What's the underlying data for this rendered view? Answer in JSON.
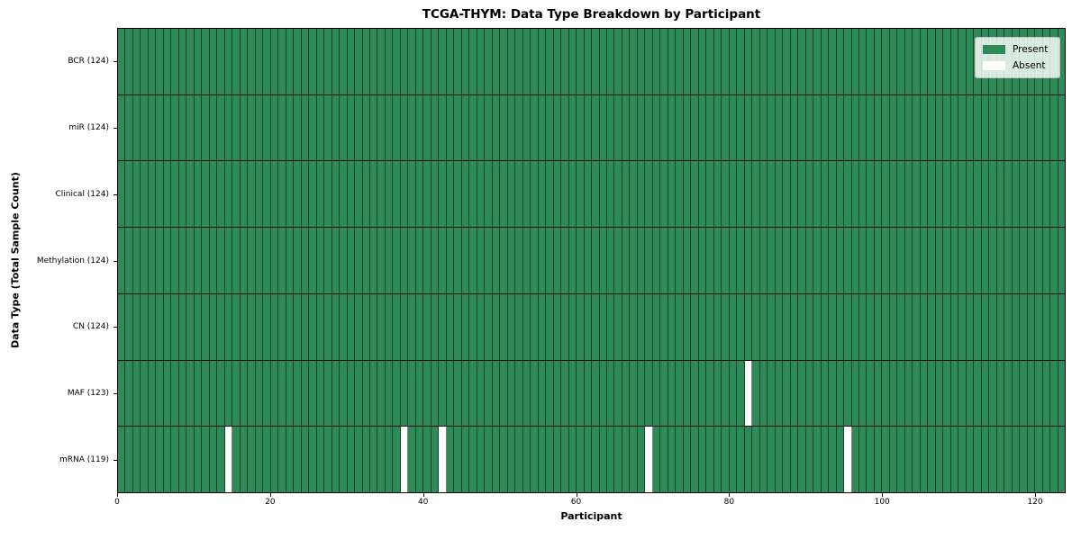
{
  "title": "TCGA-THYM: Data Type Breakdown by Participant",
  "xlabel": "Participant",
  "ylabel": "Data Type (Total Sample Count)",
  "legend": {
    "present_label": "Present",
    "absent_label": "Absent"
  },
  "colors": {
    "present": "#2e8b57",
    "absent": "#ffffff"
  },
  "chart_data": {
    "type": "heatmap",
    "title": "TCGA-THYM: Data Type Breakdown by Participant",
    "xlabel": "Participant",
    "ylabel": "Data Type (Total Sample Count)",
    "n_participants": 124,
    "x_ticks": [
      0,
      20,
      40,
      60,
      80,
      100,
      120
    ],
    "xlim": [
      0,
      124
    ],
    "grid": true,
    "legend_position": "upper right",
    "legend_entries": [
      "Present",
      "Absent"
    ],
    "value_meaning": {
      "1": "Present",
      "0": "Absent"
    },
    "rows": [
      {
        "data_type": "BCR",
        "label": "BCR (124)",
        "total_samples": 124,
        "absent_participants": []
      },
      {
        "data_type": "miR",
        "label": "miR (124)",
        "total_samples": 124,
        "absent_participants": []
      },
      {
        "data_type": "Clinical",
        "label": "Clinical (124)",
        "total_samples": 124,
        "absent_participants": []
      },
      {
        "data_type": "Methylation",
        "label": "Methylation (124)",
        "total_samples": 124,
        "absent_participants": []
      },
      {
        "data_type": "CN",
        "label": "CN (124)",
        "total_samples": 124,
        "absent_participants": []
      },
      {
        "data_type": "MAF",
        "label": "MAF (123)",
        "total_samples": 123,
        "absent_participants": [
          82
        ]
      },
      {
        "data_type": "mRNA",
        "label": "mRNA (119)",
        "total_samples": 119,
        "absent_participants": [
          14,
          37,
          42,
          69,
          95
        ]
      }
    ]
  }
}
